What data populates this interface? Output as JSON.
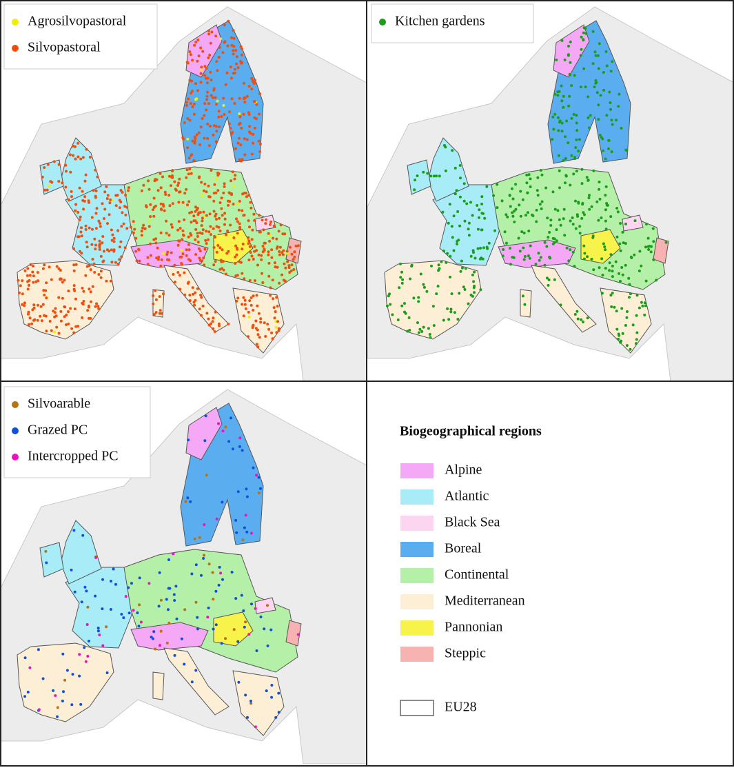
{
  "panels": [
    {
      "legend": [
        {
          "label": "Agrosilvopastoral",
          "color": "#f2ee00"
        },
        {
          "label": "Silvopastoral",
          "color": "#f04e0f"
        }
      ]
    },
    {
      "legend": [
        {
          "label": "Kitchen gardens",
          "color": "#1a9e1a"
        }
      ]
    },
    {
      "legend": [
        {
          "label": "Silvoarable",
          "color": "#b8730f"
        },
        {
          "label": "Grazed PC",
          "color": "#1050e0"
        },
        {
          "label": "Intercropped PC",
          "color": "#f010c0"
        }
      ]
    }
  ],
  "regions": {
    "title": "Biogeographical regions",
    "items": [
      {
        "label": "Alpine",
        "color": "#f5a8f5"
      },
      {
        "label": "Atlantic",
        "color": "#a8ecf8"
      },
      {
        "label": "Black Sea",
        "color": "#fcd6f0"
      },
      {
        "label": "Boreal",
        "color": "#5aaef0"
      },
      {
        "label": "Continental",
        "color": "#b4f0a8"
      },
      {
        "label": "Mediterranean",
        "color": "#fcefd6"
      },
      {
        "label": "Pannonian",
        "color": "#f8f34a"
      },
      {
        "label": "Steppic",
        "color": "#f7b2b2"
      }
    ],
    "boundary": "EU28"
  }
}
